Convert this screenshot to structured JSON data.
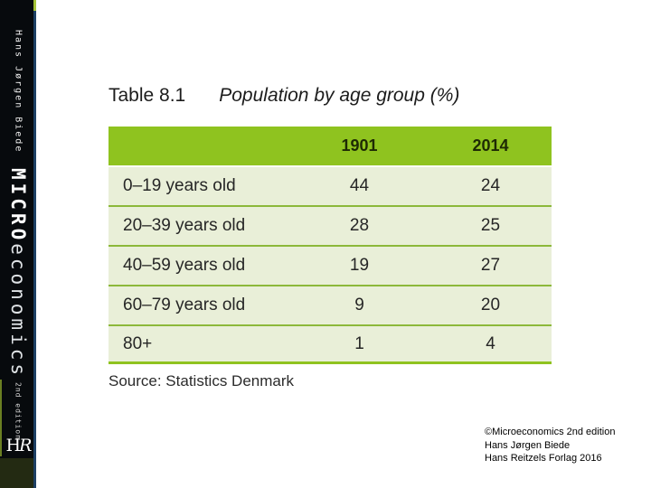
{
  "spine": {
    "author": "Hans Jørgen Biede",
    "brand_bold": "MICRO",
    "brand_light": "economics",
    "edition": "2nd edition",
    "logo_h": "H",
    "logo_r": "R"
  },
  "slide": {
    "table_label": "Table 8.1",
    "table_title": "Population by age group (%)",
    "source": "Source: Statistics Denmark"
  },
  "chart_data": {
    "type": "table",
    "title": "Population by age group (%)",
    "columns": [
      "1901",
      "2014"
    ],
    "categories": [
      "0–19 years old",
      "20–39 years old",
      "40–59 years old",
      "60–79 years old",
      "80+"
    ],
    "series": [
      {
        "name": "1901",
        "values": [
          44,
          28,
          19,
          9,
          1
        ]
      },
      {
        "name": "2014",
        "values": [
          24,
          25,
          27,
          20,
          4
        ]
      }
    ],
    "source": "Source: Statistics Denmark"
  },
  "footer": {
    "line1": "©Microeconomics 2nd edition",
    "line2": "Hans Jørgen Biede",
    "line3": "Hans Reitzels Forlag 2016"
  },
  "colors": {
    "header_green": "#8fc31f",
    "row_green": "#e9efd8",
    "line_green": "#8cb83a",
    "spine_black": "#070a0d",
    "spine_blue": "#1d4064",
    "spine_olive": "#232a12",
    "accent_green": "#a5c339"
  }
}
